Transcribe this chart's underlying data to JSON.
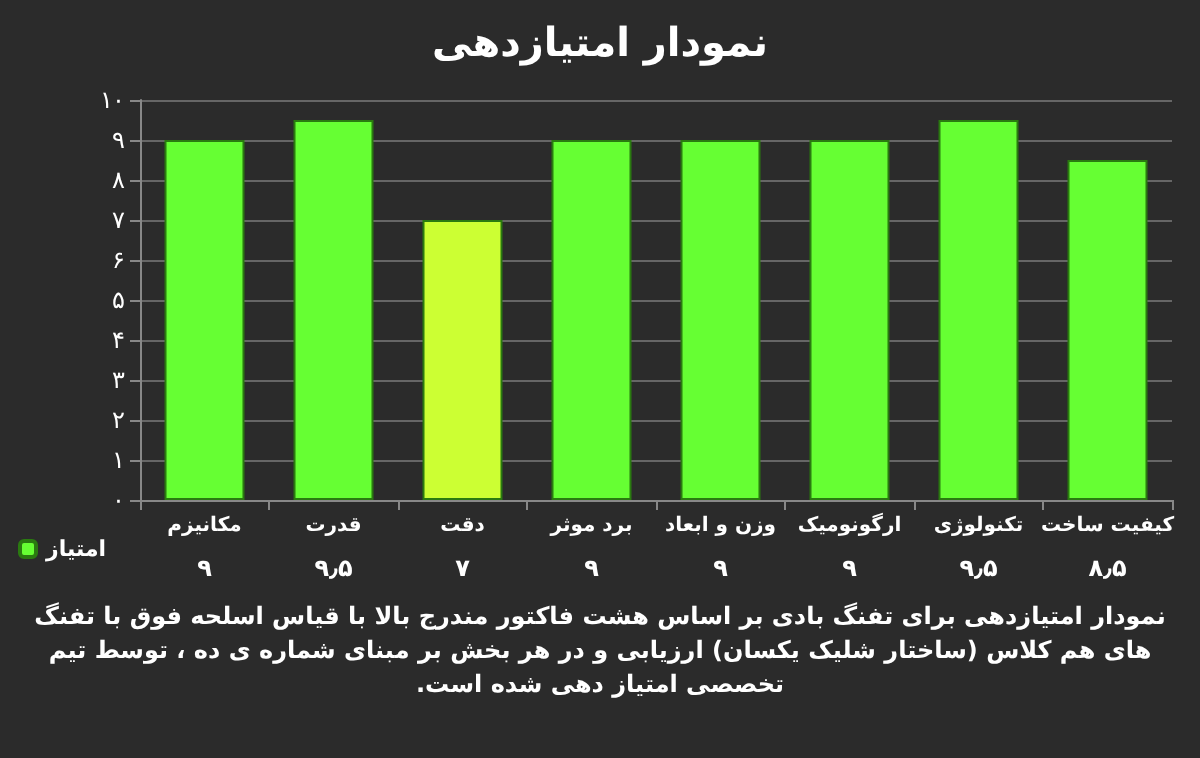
{
  "chart_data": {
    "type": "bar",
    "title": "نمودار امتیازدهی",
    "categories": [
      "مکانیزم",
      "قدرت",
      "دقت",
      "برد موثر",
      "وزن و ابعاد",
      "ارگونومیک",
      "تکنولوژی",
      "کیفیت ساخت"
    ],
    "series": [
      {
        "name": "امتیاز",
        "color": "#66ff33",
        "colors": [
          "#66ff33",
          "#66ff33",
          "#ccff33",
          "#66ff33",
          "#66ff33",
          "#66ff33",
          "#66ff33",
          "#66ff33"
        ],
        "values": [
          9,
          9.5,
          7,
          9,
          9,
          9,
          9.5,
          8.5
        ],
        "value_labels": [
          "۹",
          "۹٫۵",
          "۷",
          "۹",
          "۹",
          "۹",
          "۹٫۵",
          "۸٫۵"
        ]
      }
    ],
    "ylim": [
      0,
      10
    ],
    "yticks": [
      {
        "value": 0,
        "label": "۰"
      },
      {
        "value": 1,
        "label": "۱"
      },
      {
        "value": 2,
        "label": "۲"
      },
      {
        "value": 3,
        "label": "۳"
      },
      {
        "value": 4,
        "label": "۴"
      },
      {
        "value": 5,
        "label": "۵"
      },
      {
        "value": 6,
        "label": "۶"
      },
      {
        "value": 7,
        "label": "۷"
      },
      {
        "value": 8,
        "label": "۸"
      },
      {
        "value": 9,
        "label": "۹"
      },
      {
        "value": 10,
        "label": "۱۰"
      }
    ],
    "grid": "y",
    "legend": "bottom left",
    "annotations": [
      "نمودار امتیازدهی برای تفنگ بادی بر اساس هشت فاکتور مندرج بالا با قیاس اسلحه فوق با تفنگ های هم کلاس (ساختار شلیک یکسان) ارزیابی و در هر بخش بر مبنای شماره ی ده ، توسط تیم تخصصی امتیاز دهی شده است."
    ]
  }
}
